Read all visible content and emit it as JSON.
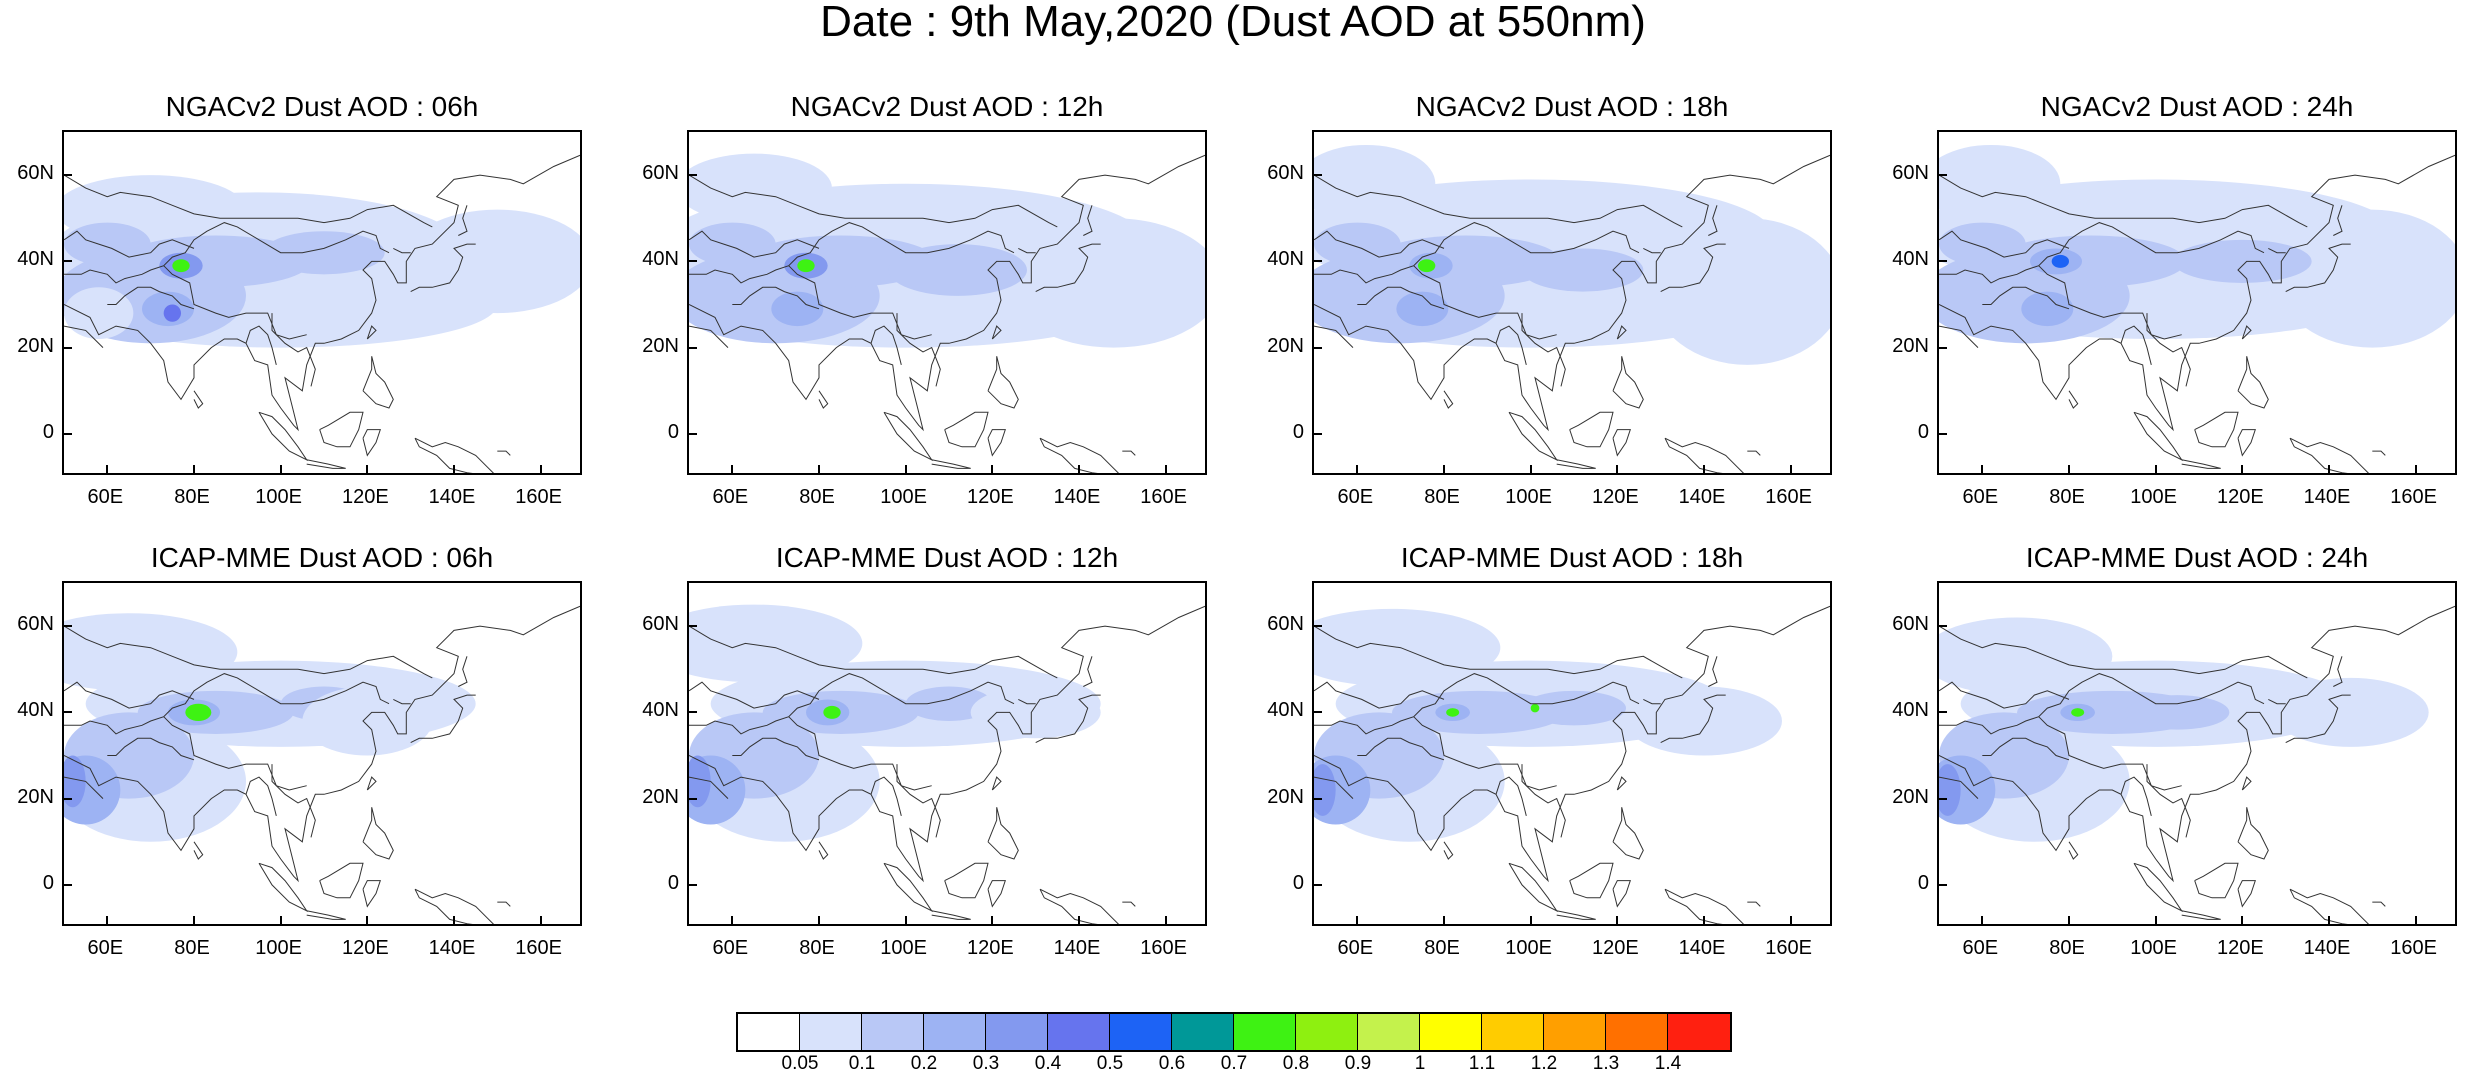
{
  "title": "Date : 9th May,2020 (Dust AOD at 550nm)",
  "panels": [
    {
      "title": "NGACv2 Dust AOD : 06h",
      "model": "NGACv2",
      "hour": "06h"
    },
    {
      "title": "NGACv2 Dust AOD : 12h",
      "model": "NGACv2",
      "hour": "12h"
    },
    {
      "title": "NGACv2 Dust AOD : 18h",
      "model": "NGACv2",
      "hour": "18h"
    },
    {
      "title": "NGACv2 Dust AOD : 24h",
      "model": "NGACv2",
      "hour": "24h"
    },
    {
      "title": "ICAP-MME Dust AOD : 06h",
      "model": "ICAP-MME",
      "hour": "06h"
    },
    {
      "title": "ICAP-MME Dust AOD : 12h",
      "model": "ICAP-MME",
      "hour": "12h"
    },
    {
      "title": "ICAP-MME Dust AOD : 18h",
      "model": "ICAP-MME",
      "hour": "18h"
    },
    {
      "title": "ICAP-MME Dust AOD : 24h",
      "model": "ICAP-MME",
      "hour": "24h"
    }
  ],
  "axes": {
    "lon_range": [
      50,
      170
    ],
    "lat_range": [
      -10,
      70
    ],
    "x_ticks": [
      "60E",
      "80E",
      "100E",
      "120E",
      "140E",
      "160E"
    ],
    "x_tick_values": [
      60,
      80,
      100,
      120,
      140,
      160
    ],
    "y_ticks": [
      "60N",
      "40N",
      "20N",
      "0"
    ],
    "y_tick_values": [
      60,
      40,
      20,
      0
    ]
  },
  "colorbar": {
    "labels": [
      "0.05",
      "0.1",
      "0.2",
      "0.3",
      "0.4",
      "0.5",
      "0.6",
      "0.7",
      "0.8",
      "0.9",
      "1",
      "1.1",
      "1.2",
      "1.3",
      "1.4"
    ],
    "colors": [
      "#ffffff",
      "#d8e2fb",
      "#b9c8f6",
      "#9db3f3",
      "#8399ef",
      "#6674ee",
      "#1d63f5",
      "#009898",
      "#3ef213",
      "#8ef010",
      "#c4f24c",
      "#ffff00",
      "#ffcc00",
      "#ff9f00",
      "#ff7000",
      "#ff2010"
    ]
  }
}
